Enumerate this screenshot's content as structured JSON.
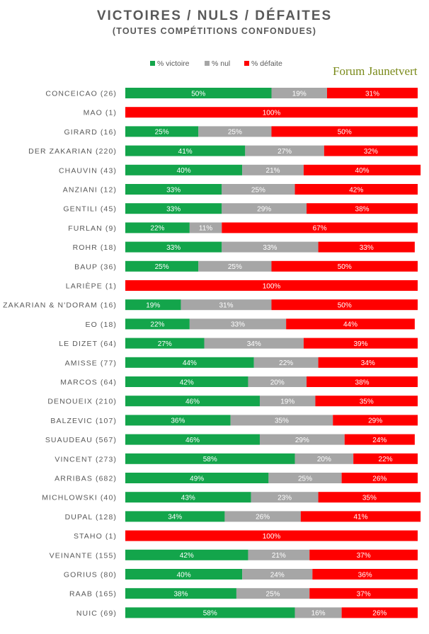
{
  "title": "VICTOIRES / NULS / DÉFAITES",
  "subtitle": "(TOUTES COMPÉTITIONS CONFONDUES)",
  "watermark": "Forum Jaunetvert",
  "colors": {
    "victoire": "#13a54b",
    "nul": "#a6a6a6",
    "defaite": "#ff0000",
    "text": "#595959"
  },
  "chart_data": {
    "type": "bar",
    "orientation": "horizontal",
    "stacked": "100%",
    "legend_position": "top",
    "series": [
      {
        "name": "% victoire",
        "values": [
          50,
          0,
          25,
          41,
          40,
          33,
          33,
          22,
          33,
          25,
          0,
          19,
          22,
          27,
          44,
          42,
          46,
          36,
          46,
          58,
          49,
          43,
          34,
          0,
          42,
          40,
          38,
          58
        ]
      },
      {
        "name": "% nul",
        "values": [
          19,
          0,
          25,
          27,
          21,
          25,
          29,
          11,
          33,
          25,
          0,
          31,
          33,
          34,
          22,
          20,
          19,
          35,
          29,
          20,
          25,
          23,
          26,
          0,
          21,
          24,
          25,
          16
        ]
      },
      {
        "name": "% défaite",
        "values": [
          31,
          100,
          50,
          32,
          40,
          42,
          38,
          67,
          33,
          50,
          100,
          50,
          44,
          39,
          34,
          38,
          35,
          29,
          24,
          22,
          26,
          35,
          41,
          100,
          37,
          36,
          37,
          26
        ]
      }
    ],
    "categories": [
      "CONCEICAO (26)",
      "MAO (1)",
      "GIRARD (16)",
      "DER ZAKARIAN (220)",
      "CHAUVIN (43)",
      "ANZIANI (12)",
      "GENTILI (45)",
      "FURLAN (9)",
      "ROHR (18)",
      "BAUP (36)",
      "LARIÈPE (1)",
      "ZAKARIAN & N'DORAM (16)",
      "EO (18)",
      "LE DIZET (64)",
      "AMISSE (77)",
      "MARCOS (64)",
      "DENOUEIX (210)",
      "BALZEVIC (107)",
      "SUAUDEAU (567)",
      "VINCENT (273)",
      "ARRIBAS (682)",
      "MICHLOWSKI (40)",
      "DUPAL (128)",
      "STAHO (1)",
      "VEINANTE (155)",
      "GORIUS (80)",
      "RAAB (165)",
      "NUIC (69)"
    ],
    "value_labels": [
      [
        "50%",
        "19%",
        "31%"
      ],
      [
        "%",
        "",
        "100%"
      ],
      [
        "25%",
        "25%",
        "50%"
      ],
      [
        "41%",
        "27%",
        "32%"
      ],
      [
        "40%",
        "21%",
        "40%"
      ],
      [
        "33%",
        "25%",
        "42%"
      ],
      [
        "33%",
        "29%",
        "38%"
      ],
      [
        "22%",
        "11%",
        "67%"
      ],
      [
        "33%",
        "33%",
        "33%"
      ],
      [
        "25%",
        "25%",
        "50%"
      ],
      [
        "%",
        "",
        "100%"
      ],
      [
        "19%",
        "31%",
        "50%"
      ],
      [
        "22%",
        "33%",
        "44%"
      ],
      [
        "27%",
        "34%",
        "39%"
      ],
      [
        "44%",
        "22%",
        "34%"
      ],
      [
        "42%",
        "20%",
        "38%"
      ],
      [
        "46%",
        "19%",
        "35%"
      ],
      [
        "36%",
        "35%",
        "29%"
      ],
      [
        "46%",
        "29%",
        "24%"
      ],
      [
        "58%",
        "20%",
        "22%"
      ],
      [
        "49%",
        "25%",
        "26%"
      ],
      [
        "43%",
        "23%",
        "35%"
      ],
      [
        "34%",
        "26%",
        "41%"
      ],
      [
        "%",
        "",
        "100%"
      ],
      [
        "42%",
        "21%",
        "37%"
      ],
      [
        "40%",
        "24%",
        "36%"
      ],
      [
        "38%",
        "25%",
        "37%"
      ],
      [
        "58%",
        "16%",
        "26%"
      ]
    ],
    "xlim": [
      0,
      100
    ]
  }
}
